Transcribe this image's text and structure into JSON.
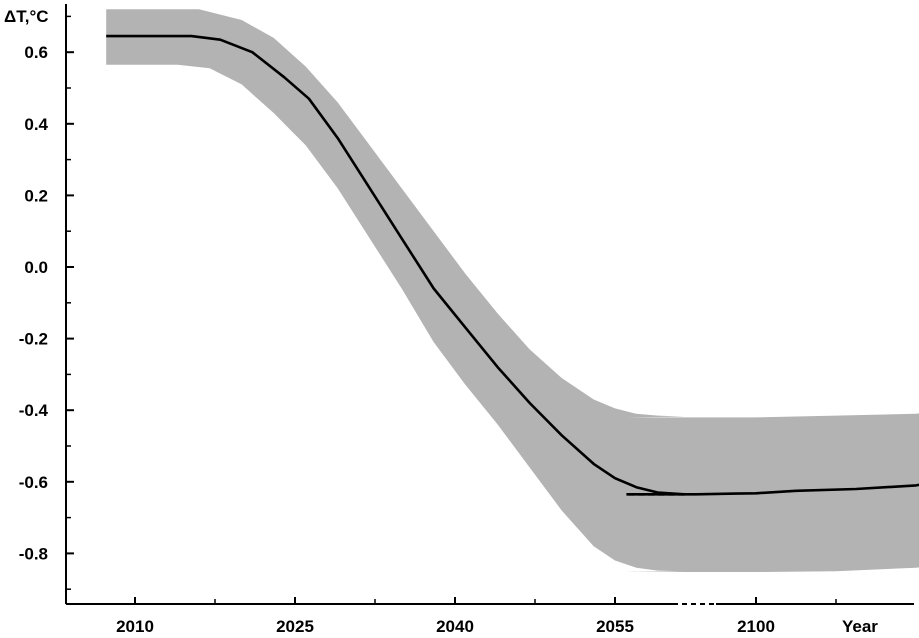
{
  "chart_data": {
    "type": "line",
    "title": "",
    "ylabel": "ΔT,°C",
    "xlabel": "Year",
    "ylim": [
      -0.95,
      0.75
    ],
    "y_ticks": [
      {
        "value": 0.6,
        "label": "0.6"
      },
      {
        "value": 0.4,
        "label": "0.4"
      },
      {
        "value": 0.2,
        "label": "0.2"
      },
      {
        "value": 0.0,
        "label": "0.0"
      },
      {
        "value": -0.2,
        "label": "-0.2"
      },
      {
        "value": -0.4,
        "label": "-0.4"
      },
      {
        "value": -0.6,
        "label": "-0.6"
      },
      {
        "value": -0.8,
        "label": "-0.8"
      }
    ],
    "x_ticks": [
      {
        "value": 2010,
        "label": "2010"
      },
      {
        "value": 2025,
        "label": "2025"
      },
      {
        "value": 2040,
        "label": "2040"
      },
      {
        "value": 2055,
        "label": "2055"
      },
      {
        "value": 2100,
        "label": "2100"
      }
    ],
    "x_axis_break": {
      "between": [
        2055,
        2100
      ]
    },
    "grid": false,
    "legend": "none",
    "colors": {
      "line": "#000000",
      "band": "#b3b3b3",
      "axis": "#000000"
    },
    "series": [
      {
        "values_segments": [
          {
            "style": "solid",
            "x": [
              2007.3,
              2015.3,
              2018.0,
              2021.0,
              2024.0,
              2026.3,
              2029.0,
              2032.0,
              2035.0,
              2038.0,
              2041.0,
              2044.0,
              2047.0,
              2050.0,
              2053.0,
              2055.0,
              2057.0,
              2059.0,
              2061.5
            ],
            "y": [
              0.645,
              0.645,
              0.635,
              0.6,
              0.53,
              0.47,
              0.36,
              0.22,
              0.08,
              -0.06,
              -0.17,
              -0.28,
              -0.38,
              -0.47,
              -0.55,
              -0.59,
              -0.615,
              -0.63,
              -0.635
            ]
          },
          {
            "style": "dashed",
            "x": [
              2061.5,
              2067.6
            ],
            "y": [
              -0.635,
              -0.635
            ]
          },
          {
            "style": "solid",
            "x": [
              2067.6,
              2075.0,
              2085.0,
              2095.0,
              2100.0,
              2110.0,
              2125.0,
              2140.0,
              2150.0,
              2160.0
            ],
            "y": [
              -0.635,
              -0.635,
              -0.635,
              -0.633,
              -0.632,
              -0.625,
              -0.62,
              -0.61,
              -0.59,
              -0.565
            ]
          }
        ],
        "band_upper": {
          "x": [
            2007.3,
            2016.0,
            2020.0,
            2023.0,
            2026.0,
            2029.0,
            2032.0,
            2035.0,
            2038.0,
            2041.0,
            2044.0,
            2047.0,
            2050.0,
            2053.0,
            2055.0,
            2057.0,
            2059.0,
            2061.5,
            2067.6,
            2080.0,
            2100.0,
            2120.0,
            2140.0,
            2150.0,
            2160.0
          ],
          "y": [
            0.72,
            0.72,
            0.69,
            0.64,
            0.56,
            0.46,
            0.34,
            0.22,
            0.1,
            -0.02,
            -0.13,
            -0.23,
            -0.31,
            -0.37,
            -0.395,
            -0.41,
            -0.415,
            -0.418,
            -0.42,
            -0.42,
            -0.42,
            -0.415,
            -0.41,
            -0.395,
            -0.35
          ]
        },
        "band_lower": {
          "x": [
            2007.3,
            2014.0,
            2017.0,
            2020.0,
            2023.0,
            2026.0,
            2029.0,
            2032.0,
            2035.0,
            2038.0,
            2041.0,
            2044.0,
            2047.0,
            2050.0,
            2053.0,
            2055.0,
            2057.0,
            2059.0,
            2061.5,
            2067.6,
            2080.0,
            2100.0,
            2120.0,
            2140.0,
            2150.0,
            2160.0
          ],
          "y": [
            0.565,
            0.565,
            0.555,
            0.51,
            0.43,
            0.34,
            0.22,
            0.08,
            -0.06,
            -0.21,
            -0.33,
            -0.44,
            -0.56,
            -0.68,
            -0.78,
            -0.82,
            -0.84,
            -0.848,
            -0.85,
            -0.85,
            -0.852,
            -0.852,
            -0.85,
            -0.84,
            -0.825,
            -0.795
          ]
        }
      }
    ]
  }
}
